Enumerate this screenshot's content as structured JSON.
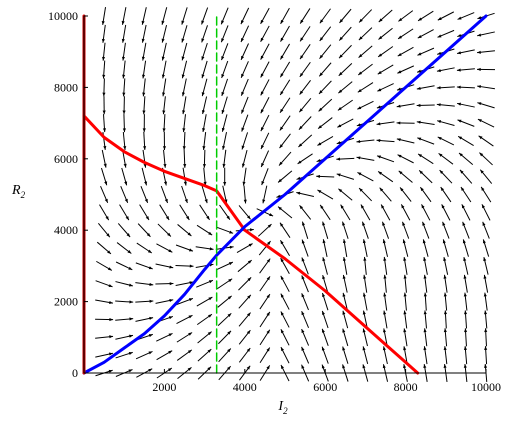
{
  "chart_data": {
    "type": "line",
    "title": "",
    "xlabel": "I",
    "xlabel_subscript": "2",
    "ylabel": "R",
    "ylabel_subscript": "2",
    "xlim": [
      0,
      10000
    ],
    "ylim": [
      0,
      10000
    ],
    "xticks": [
      2000,
      4000,
      6000,
      8000,
      10000
    ],
    "yticks": [
      0,
      2000,
      4000,
      6000,
      8000,
      10000
    ],
    "xtick_labels": [
      "2000",
      "4000",
      "6000",
      "8000",
      "10000"
    ],
    "ytick_labels": [
      "0",
      "2000",
      "4000",
      "6000",
      "8000",
      "10000"
    ],
    "grid": false,
    "legend": "none",
    "colors": {
      "red_curve": "#ff0000",
      "blue_curve": "#0000ff",
      "green_line": "#00cc00",
      "arrows": "#000000",
      "y_axis_line": "#cc0000"
    },
    "series": [
      {
        "style": "solid",
        "color": "#ff0000",
        "x": [
          0,
          500,
          1000,
          1500,
          2000,
          2500,
          3000,
          3300,
          4000,
          5000,
          6000,
          7000,
          8000,
          8300
        ],
        "y": [
          7200,
          6600,
          6200,
          5900,
          5650,
          5450,
          5250,
          5100,
          4000,
          3200,
          2300,
          1300,
          300,
          0
        ]
      },
      {
        "style": "solid",
        "color": "#0000ff",
        "x": [
          0,
          500,
          1000,
          1500,
          2000,
          2500,
          3000,
          3300,
          4000,
          5000,
          6000,
          7000,
          8000,
          9000,
          10000
        ],
        "y": [
          0,
          300,
          700,
          1100,
          1600,
          2200,
          2900,
          3300,
          4100,
          5000,
          6000,
          7000,
          8000,
          9000,
          10000
        ]
      },
      {
        "style": "solid",
        "color": "#cc0000",
        "x": [
          0,
          0
        ],
        "y": [
          0,
          10000
        ]
      },
      {
        "style": "dashed",
        "color": "#00cc00",
        "x": [
          3300,
          3300
        ],
        "y": [
          0,
          10000
        ]
      }
    ],
    "vector_field": {
      "type": "direction-field",
      "nx": 21,
      "ny": 21,
      "color": "#000000"
    }
  }
}
